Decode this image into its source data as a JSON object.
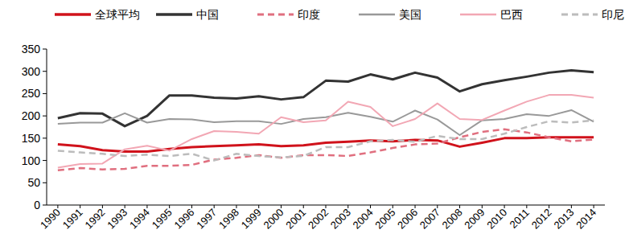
{
  "chart_data": {
    "type": "line",
    "categories": [
      "1990",
      "1991",
      "1992",
      "1993",
      "1994",
      "1995",
      "1996",
      "1997",
      "1998",
      "1999",
      "2000",
      "2001",
      "2002",
      "2003",
      "2004",
      "2005",
      "2006",
      "2007",
      "2008",
      "2009",
      "2010",
      "2011",
      "2012",
      "2013",
      "2014"
    ],
    "series": [
      {
        "name": "全球平均",
        "color": "#d0121b",
        "line_style": "solid",
        "values": [
          136,
          132,
          123,
          120,
          120,
          126,
          130,
          132,
          134,
          136,
          132,
          134,
          140,
          142,
          145,
          143,
          146,
          145,
          131,
          140,
          150,
          150,
          152,
          152,
          152
        ]
      },
      {
        "name": "中国",
        "color": "#333333",
        "line_style": "solid",
        "values": [
          195,
          206,
          205,
          177,
          200,
          246,
          246,
          241,
          239,
          244,
          237,
          242,
          279,
          277,
          293,
          282,
          297,
          286,
          255,
          271,
          280,
          288,
          297,
          302,
          298
        ]
      },
      {
        "name": "印度",
        "color": "#e06f7f",
        "line_style": "dashed",
        "values": [
          78,
          83,
          80,
          81,
          88,
          88,
          90,
          102,
          106,
          112,
          106,
          112,
          112,
          110,
          118,
          128,
          136,
          138,
          152,
          164,
          170,
          163,
          152,
          143,
          147
        ]
      },
      {
        "name": "美国",
        "color": "#999999",
        "line_style": "solid",
        "values": [
          182,
          185,
          185,
          206,
          185,
          193,
          192,
          186,
          188,
          188,
          182,
          193,
          197,
          207,
          198,
          187,
          212,
          192,
          157,
          190,
          193,
          204,
          200,
          213,
          187
        ]
      },
      {
        "name": "巴西",
        "color": "#f2a7b4",
        "line_style": "solid",
        "values": [
          84,
          92,
          93,
          125,
          133,
          122,
          148,
          166,
          164,
          160,
          197,
          186,
          190,
          232,
          220,
          177,
          193,
          228,
          193,
          191,
          212,
          232,
          247,
          247,
          241
        ]
      },
      {
        "name": "印尼",
        "color": "#bcbcbc",
        "line_style": "dashed",
        "values": [
          122,
          118,
          115,
          110,
          113,
          110,
          115,
          100,
          115,
          110,
          107,
          110,
          130,
          130,
          143,
          146,
          142,
          155,
          148,
          148,
          160,
          175,
          188,
          185,
          190
        ]
      }
    ],
    "ylim": [
      0,
      350
    ],
    "yticks": [
      0,
      50,
      100,
      150,
      200,
      250,
      300,
      350
    ],
    "grid": false,
    "legend": "top"
  }
}
